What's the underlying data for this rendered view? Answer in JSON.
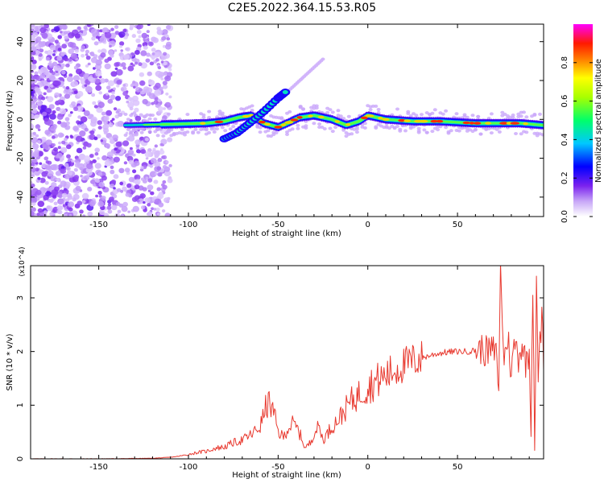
{
  "figure_title": "C2E5.2022.364.15.53.R05",
  "colors": {
    "snr_line": "#e8392f",
    "axis": "#000000",
    "colormap": [
      "#ffffff",
      "#8a2be2",
      "#0000ff",
      "#00c0ff",
      "#00ff60",
      "#ffff00",
      "#ff2000",
      "#ff00ff"
    ]
  },
  "chart_data": [
    {
      "type": "heatmap",
      "title": "C2E5.2022.364.15.53.R05",
      "xlabel": "Height of straight line (km)",
      "ylabel": "Frequency (Hz)",
      "xlim": [
        -188,
        98
      ],
      "ylim": [
        -50,
        49
      ],
      "xticks": [
        -150,
        -100,
        -50,
        0,
        50
      ],
      "xtick_labels": [
        "-150",
        "-100",
        "-50",
        "0",
        "50"
      ],
      "yticks": [
        -40,
        -20,
        0,
        20,
        40
      ],
      "ytick_labels": [
        "-40",
        "-20",
        "0",
        "20",
        "40"
      ],
      "colorbar": {
        "label": "Normalized spectral amplitude",
        "range": [
          0,
          1
        ],
        "ticks": [
          0.0,
          0.2,
          0.4,
          0.6,
          0.8
        ],
        "tick_labels": [
          "0.0",
          "0.2",
          "0.4",
          "0.6",
          "0.8"
        ]
      },
      "features": {
        "noise_region_km": [
          -188,
          -110
        ],
        "main_band_centerline": [
          [
            -135,
            -3
          ],
          [
            -110,
            -2.5
          ],
          [
            -90,
            -2
          ],
          [
            -80,
            -1
          ],
          [
            -72,
            1
          ],
          [
            -65,
            2
          ],
          [
            -58,
            -2
          ],
          [
            -50,
            -4
          ],
          [
            -45,
            -2
          ],
          [
            -38,
            1
          ],
          [
            -30,
            2
          ],
          [
            -20,
            0
          ],
          [
            -12,
            -3
          ],
          [
            -5,
            -1
          ],
          [
            0,
            2
          ],
          [
            10,
            0
          ],
          [
            25,
            -1
          ],
          [
            40,
            -1
          ],
          [
            60,
            -2
          ],
          [
            75,
            -2
          ],
          [
            85,
            -2
          ],
          [
            98,
            -3
          ]
        ],
        "secondary_branch": [
          [
            -80,
            -10
          ],
          [
            -73,
            -7
          ],
          [
            -66,
            -2
          ],
          [
            -58,
            4
          ],
          [
            -50,
            11
          ],
          [
            -46,
            14
          ]
        ],
        "faint_streak": [
          [
            -45,
            14
          ],
          [
            -25,
            31
          ]
        ]
      }
    },
    {
      "type": "line",
      "xlabel": "Height of straight line (km)",
      "ylabel": "SNR (10 * v/v)",
      "y_multiplier": "(x10^4)",
      "xlim": [
        -188,
        98
      ],
      "ylim": [
        0,
        3.6
      ],
      "xticks": [
        -150,
        -100,
        -50,
        0,
        50
      ],
      "xtick_labels": [
        "-150",
        "-100",
        "-50",
        "0",
        "50"
      ],
      "yticks": [
        0,
        1,
        2,
        3
      ],
      "ytick_labels": [
        "0",
        "1",
        "2",
        "3"
      ],
      "series": [
        {
          "name": "SNR",
          "x": [
            -188,
            -150,
            -120,
            -110,
            -105,
            -100,
            -95,
            -90,
            -85,
            -80,
            -75,
            -70,
            -65,
            -60,
            -57,
            -55,
            -52,
            -50,
            -47,
            -45,
            -42,
            -40,
            -37,
            -35,
            -32,
            -30,
            -27,
            -25,
            -20,
            -15,
            -10,
            -5,
            0,
            5,
            10,
            15,
            20,
            25,
            30,
            35,
            40,
            45,
            50,
            55,
            60,
            63,
            66,
            70,
            72,
            73,
            74,
            76,
            78,
            80,
            82,
            84,
            86,
            88,
            90,
            91,
            92,
            93,
            94,
            95,
            96,
            97,
            98
          ],
          "values": [
            0.0,
            0.0,
            0.01,
            0.03,
            0.05,
            0.08,
            0.12,
            0.14,
            0.2,
            0.22,
            0.3,
            0.35,
            0.45,
            0.6,
            0.95,
            1.05,
            0.8,
            0.5,
            0.4,
            0.55,
            0.65,
            0.6,
            0.4,
            0.2,
            0.3,
            0.5,
            0.6,
            0.35,
            0.6,
            0.8,
            1.05,
            1.2,
            1.35,
            1.45,
            1.55,
            1.65,
            1.75,
            1.82,
            1.88,
            1.93,
            1.97,
            1.99,
            2.0,
            2.0,
            2.02,
            2.05,
            2.0,
            2.02,
            1.9,
            1.3,
            3.5,
            1.8,
            2.3,
            1.6,
            2.2,
            1.9,
            2.15,
            1.8,
            2.0,
            0.7,
            3.3,
            0.25,
            3.15,
            1.6,
            2.1,
            2.7,
            1.9
          ]
        }
      ]
    }
  ]
}
